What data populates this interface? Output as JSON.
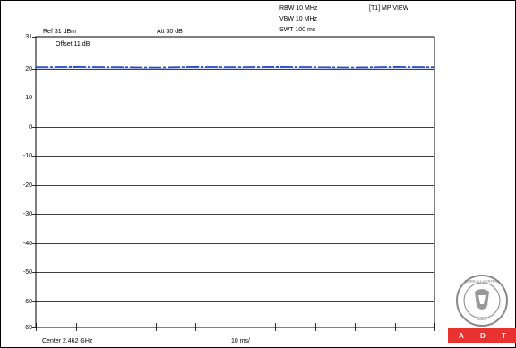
{
  "header": {
    "ref": "Ref 31 dBm",
    "att": "Att  30 dB",
    "rbw": "RBW 10 MHz",
    "vbw": "VBW 10 MHz",
    "swt": "SWT 100 ms",
    "trace_mode": "[T1] MP VIEW"
  },
  "plot": {
    "offset": "Offset 11 dB",
    "center": "Center 2.462 GHz",
    "span": "10 ms/"
  },
  "logo": {
    "text": "BUREAU VERITAS",
    "year": "1828",
    "badge": [
      "A",
      "D",
      "T"
    ]
  },
  "chart_data": {
    "type": "line",
    "title": "",
    "xlabel": "",
    "ylabel": "",
    "ylim": [
      -69,
      31
    ],
    "yticks": [
      31,
      20,
      10,
      0,
      -10,
      -20,
      -30,
      -40,
      -50,
      -60,
      -69
    ],
    "xlim": [
      0,
      100
    ],
    "x_divisions": 10,
    "series": [
      {
        "color": "#2a44c8",
        "values": [
          20.5,
          20.6,
          20.5,
          20.4,
          20.6,
          20.5,
          20.6,
          20.5,
          20.4,
          20.6,
          20.5
        ]
      }
    ]
  }
}
